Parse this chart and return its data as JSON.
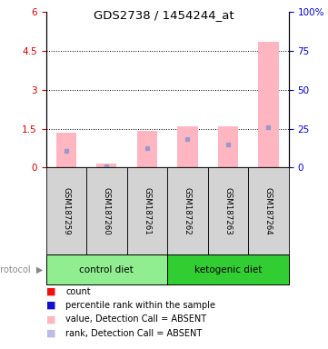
{
  "title": "GDS2738 / 1454244_at",
  "samples": [
    "GSM187259",
    "GSM187260",
    "GSM187261",
    "GSM187262",
    "GSM187263",
    "GSM187264"
  ],
  "groups": [
    {
      "name": "control diet",
      "color": "#90ee90",
      "start": 0,
      "end": 3
    },
    {
      "name": "ketogenic diet",
      "color": "#32cd32",
      "start": 3,
      "end": 6
    }
  ],
  "pink_bar_heights": [
    1.35,
    0.15,
    1.4,
    1.6,
    1.6,
    4.85
  ],
  "blue_marker_heights": [
    0.65,
    0.05,
    0.75,
    1.1,
    0.9,
    1.55
  ],
  "left_ylim": [
    0,
    6
  ],
  "left_yticks": [
    0,
    1.5,
    3.0,
    4.5,
    6.0
  ],
  "left_yticklabels": [
    "0",
    "1.5",
    "3",
    "4.5",
    "6"
  ],
  "right_ylim": [
    0,
    100
  ],
  "right_yticks": [
    0,
    25,
    50,
    75,
    100
  ],
  "right_yticklabels": [
    "0",
    "25",
    "50",
    "75",
    "100%"
  ],
  "pink_color": "#FFB6C1",
  "blue_color": "#9999CC",
  "left_tick_color": "#CC0000",
  "right_tick_color": "#0000CC",
  "bg_color": "#ffffff",
  "sample_box_color": "#d3d3d3",
  "legend_items": [
    {
      "label": "count",
      "color": "#EE1111"
    },
    {
      "label": "percentile rank within the sample",
      "color": "#1111CC"
    },
    {
      "label": "value, Detection Call = ABSENT",
      "color": "#FFB6C1"
    },
    {
      "label": "rank, Detection Call = ABSENT",
      "color": "#BBBBEE"
    }
  ],
  "protocol_label": "protocol"
}
